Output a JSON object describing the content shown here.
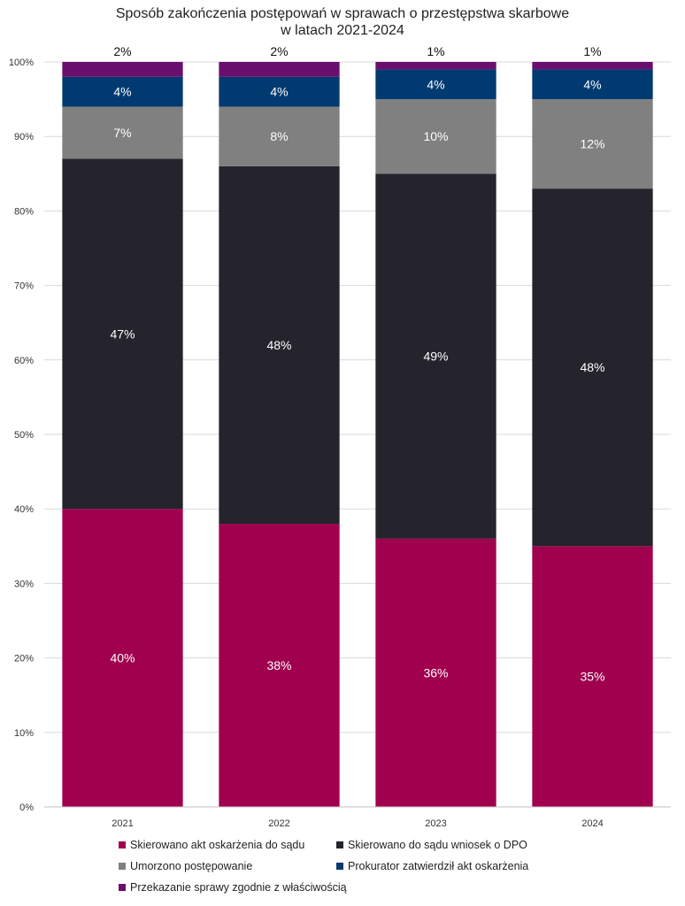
{
  "chart_data": {
    "type": "bar",
    "stacked": true,
    "title_lines": [
      "Sposób zakończenia postępowań w sprawach o przestępstwa skarbowe",
      "w latach 2021-2024"
    ],
    "categories": [
      "2021",
      "2022",
      "2023",
      "2024"
    ],
    "ylim": [
      0,
      100
    ],
    "ytick_labels": [
      "0%",
      "10%",
      "20%",
      "30%",
      "40%",
      "50%",
      "60%",
      "70%",
      "80%",
      "90%",
      "100%"
    ],
    "grid": true,
    "legend_position": "bottom",
    "series": [
      {
        "name": "Skierowano akt oskarżenia do sądu",
        "color": "#A0004E",
        "values": [
          40,
          38,
          36,
          35
        ],
        "labels": [
          "40%",
          "38%",
          "36%",
          "35%"
        ]
      },
      {
        "name": "Skierowano do sądu wniosek o DPO",
        "color": "#25232C",
        "values": [
          47,
          48,
          49,
          48
        ],
        "labels": [
          "47%",
          "48%",
          "49%",
          "48%"
        ]
      },
      {
        "name": "Umorzono postępowanie",
        "color": "#808080",
        "values": [
          7,
          8,
          10,
          12
        ],
        "labels": [
          "7%",
          "8%",
          "10%",
          "12%"
        ]
      },
      {
        "name": "Prokurator zatwierdził akt oskarżenia",
        "color": "#003A70",
        "values": [
          4,
          4,
          4,
          4
        ],
        "labels": [
          "4%",
          "4%",
          "4%",
          "4%"
        ]
      },
      {
        "name": "Przekazanie sprawy zgodnie z właściwością",
        "color": "#6B0F6E",
        "values": [
          2,
          2,
          1,
          1
        ],
        "labels": [
          "2%",
          "2%",
          "1%",
          "1%"
        ]
      }
    ]
  }
}
